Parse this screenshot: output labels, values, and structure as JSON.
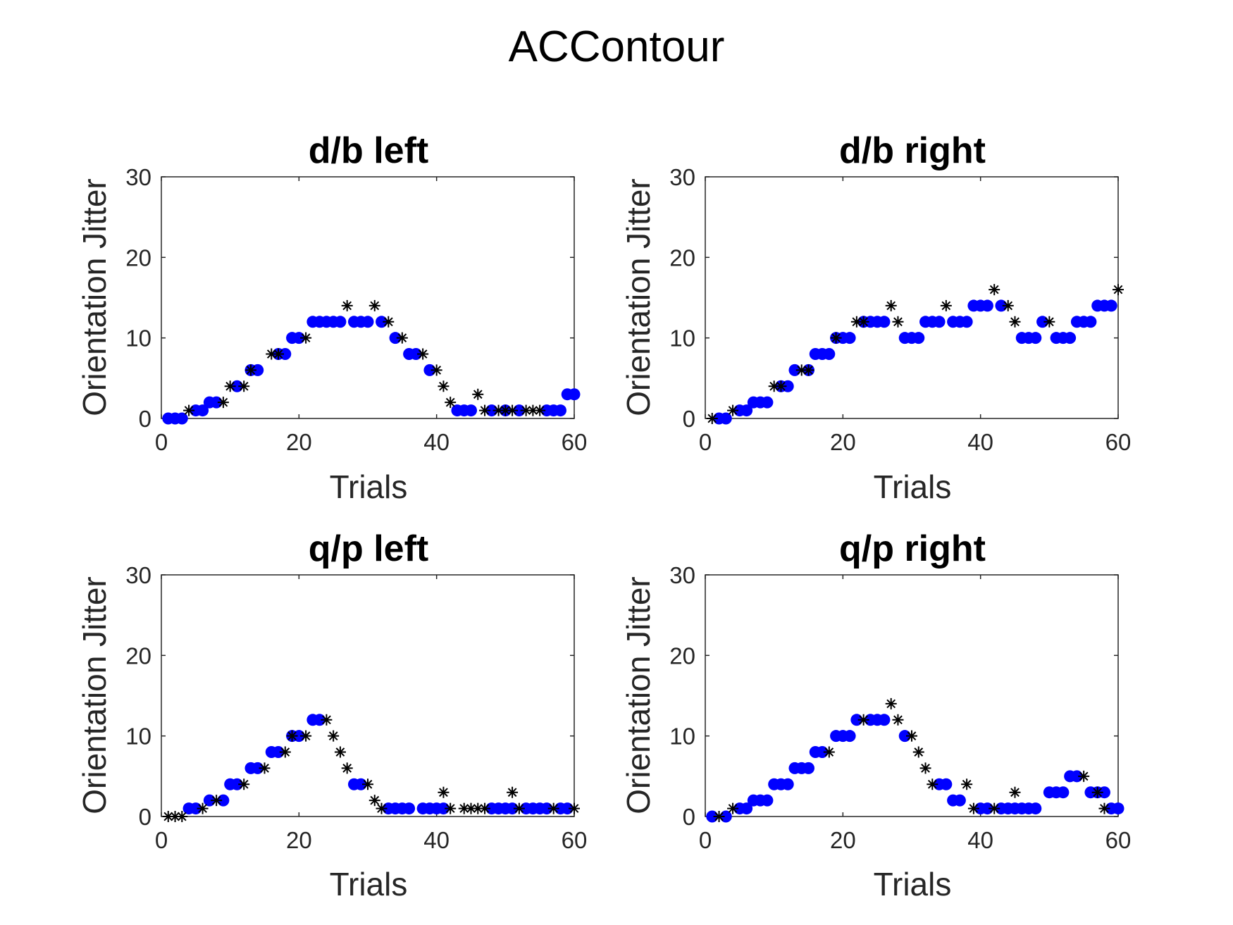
{
  "figure": {
    "title": "ACContour"
  },
  "chart_data": [
    {
      "type": "scatter",
      "title": "d/b left",
      "xlabel": "Trials",
      "ylabel": "Orientation Jitter",
      "xlim": [
        0,
        60
      ],
      "ylim": [
        0,
        30
      ],
      "xticks": [
        0,
        20,
        40,
        60
      ],
      "yticks": [
        0,
        10,
        20,
        30
      ],
      "grid": false,
      "series": [
        {
          "marker": "filled-circle",
          "color": "#0000ff",
          "x": [
            1,
            2,
            3,
            5,
            6,
            7,
            8,
            11,
            13,
            14,
            17,
            18,
            19,
            20,
            22,
            23,
            24,
            25,
            26,
            28,
            29,
            30,
            32,
            34,
            36,
            37,
            39,
            43,
            44,
            45,
            48,
            50,
            52,
            56,
            57,
            58,
            59,
            60
          ],
          "y": [
            0,
            0,
            0,
            1,
            1,
            2,
            2,
            4,
            6,
            6,
            8,
            8,
            10,
            10,
            12,
            12,
            12,
            12,
            12,
            12,
            12,
            12,
            12,
            10,
            8,
            8,
            6,
            1,
            1,
            1,
            1,
            1,
            1,
            1,
            1,
            1,
            3,
            3
          ]
        },
        {
          "marker": "asterisk",
          "color": "#000000",
          "x": [
            4,
            9,
            10,
            12,
            13,
            16,
            17,
            21,
            27,
            31,
            33,
            35,
            38,
            40,
            41,
            42,
            46,
            47,
            49,
            50,
            51,
            53,
            54,
            55
          ],
          "y": [
            1,
            2,
            4,
            4,
            6,
            8,
            8,
            10,
            14,
            14,
            12,
            10,
            8,
            6,
            4,
            2,
            3,
            1,
            1,
            1,
            1,
            1,
            1,
            1
          ]
        }
      ]
    },
    {
      "type": "scatter",
      "title": "d/b right",
      "xlabel": "Trials",
      "ylabel": "Orientation Jitter",
      "xlim": [
        0,
        60
      ],
      "ylim": [
        0,
        30
      ],
      "xticks": [
        0,
        20,
        40,
        60
      ],
      "yticks": [
        0,
        10,
        20,
        30
      ],
      "grid": false,
      "series": [
        {
          "marker": "filled-circle",
          "color": "#0000ff",
          "x": [
            2,
            3,
            5,
            6,
            7,
            8,
            9,
            11,
            12,
            13,
            15,
            16,
            17,
            18,
            19,
            20,
            21,
            23,
            24,
            25,
            26,
            29,
            30,
            31,
            32,
            33,
            34,
            36,
            37,
            38,
            39,
            40,
            41,
            43,
            46,
            47,
            48,
            49,
            51,
            52,
            53,
            54,
            55,
            56,
            57,
            58,
            59
          ],
          "y": [
            0,
            0,
            1,
            1,
            2,
            2,
            2,
            4,
            4,
            6,
            6,
            8,
            8,
            8,
            10,
            10,
            10,
            12,
            12,
            12,
            12,
            10,
            10,
            10,
            12,
            12,
            12,
            12,
            12,
            12,
            14,
            14,
            14,
            14,
            10,
            10,
            10,
            12,
            10,
            10,
            10,
            12,
            12,
            12,
            14,
            14,
            14
          ]
        },
        {
          "marker": "asterisk",
          "color": "#000000",
          "x": [
            1,
            4,
            10,
            11,
            14,
            15,
            19,
            22,
            23,
            27,
            28,
            35,
            42,
            44,
            45,
            50,
            60
          ],
          "y": [
            0,
            1,
            4,
            4,
            6,
            6,
            10,
            12,
            12,
            14,
            12,
            14,
            16,
            14,
            12,
            12,
            16
          ]
        }
      ]
    },
    {
      "type": "scatter",
      "title": "q/p left",
      "xlabel": "Trials",
      "ylabel": "Orientation Jitter",
      "xlim": [
        0,
        60
      ],
      "ylim": [
        0,
        30
      ],
      "xticks": [
        0,
        20,
        40,
        60
      ],
      "yticks": [
        0,
        10,
        20,
        30
      ],
      "grid": false,
      "series": [
        {
          "marker": "filled-circle",
          "color": "#0000ff",
          "x": [
            4,
            5,
            7,
            9,
            10,
            11,
            13,
            14,
            16,
            17,
            19,
            20,
            22,
            23,
            28,
            29,
            33,
            34,
            35,
            36,
            38,
            39,
            40,
            41,
            48,
            49,
            50,
            51,
            53,
            54,
            55,
            56,
            58,
            59
          ],
          "y": [
            1,
            1,
            2,
            2,
            4,
            4,
            6,
            6,
            8,
            8,
            10,
            10,
            12,
            12,
            4,
            4,
            1,
            1,
            1,
            1,
            1,
            1,
            1,
            1,
            1,
            1,
            1,
            1,
            1,
            1,
            1,
            1,
            1,
            1
          ]
        },
        {
          "marker": "asterisk",
          "color": "#000000",
          "x": [
            1,
            2,
            3,
            6,
            8,
            12,
            15,
            18,
            19,
            21,
            24,
            25,
            26,
            27,
            30,
            31,
            32,
            41,
            42,
            44,
            45,
            46,
            47,
            51,
            52,
            57,
            60
          ],
          "y": [
            0,
            0,
            0,
            1,
            2,
            4,
            6,
            8,
            10,
            10,
            12,
            10,
            8,
            6,
            4,
            2,
            1,
            3,
            1,
            1,
            1,
            1,
            1,
            3,
            1,
            1,
            1
          ]
        }
      ]
    },
    {
      "type": "scatter",
      "title": "q/p right",
      "xlabel": "Trials",
      "ylabel": "Orientation Jitter",
      "xlim": [
        0,
        60
      ],
      "ylim": [
        0,
        30
      ],
      "xticks": [
        0,
        20,
        40,
        60
      ],
      "yticks": [
        0,
        10,
        20,
        30
      ],
      "grid": false,
      "series": [
        {
          "marker": "filled-circle",
          "color": "#0000ff",
          "x": [
            1,
            3,
            5,
            6,
            7,
            8,
            9,
            10,
            11,
            12,
            13,
            14,
            15,
            16,
            17,
            19,
            20,
            21,
            22,
            24,
            25,
            26,
            29,
            34,
            35,
            36,
            37,
            40,
            41,
            43,
            44,
            45,
            46,
            47,
            48,
            50,
            51,
            52,
            53,
            54,
            56,
            57,
            58,
            59,
            60
          ],
          "y": [
            0,
            0,
            1,
            1,
            2,
            2,
            2,
            4,
            4,
            4,
            6,
            6,
            6,
            8,
            8,
            10,
            10,
            10,
            12,
            12,
            12,
            12,
            10,
            4,
            4,
            2,
            2,
            1,
            1,
            1,
            1,
            1,
            1,
            1,
            1,
            3,
            3,
            3,
            5,
            5,
            3,
            3,
            3,
            1,
            1
          ]
        },
        {
          "marker": "asterisk",
          "color": "#000000",
          "x": [
            2,
            4,
            18,
            23,
            27,
            28,
            30,
            31,
            32,
            33,
            38,
            39,
            42,
            45,
            55,
            57,
            58
          ],
          "y": [
            0,
            1,
            8,
            12,
            14,
            12,
            10,
            8,
            6,
            4,
            4,
            1,
            1,
            3,
            5,
            3,
            1
          ]
        }
      ]
    }
  ]
}
